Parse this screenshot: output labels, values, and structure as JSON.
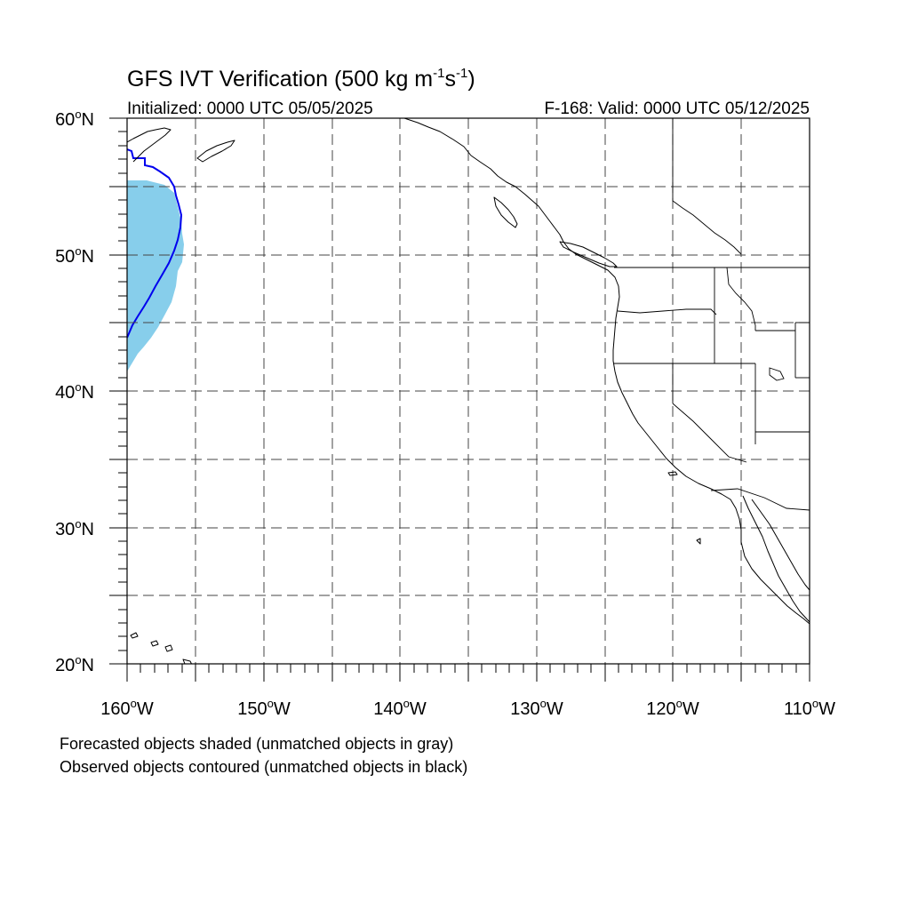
{
  "title": {
    "main": "GFS IVT Verification (500 kg m",
    "sup1": "-1",
    "mid": "s",
    "sup2": "-1",
    "end": ")"
  },
  "subtitle_left": "Initialized: 0000 UTC 05/05/2025",
  "subtitle_right": "F-168: Valid: 0000 UTC 05/12/2025",
  "lat_labels": [
    "60",
    "50",
    "40",
    "30",
    "20"
  ],
  "lon_labels": [
    "160",
    "150",
    "140",
    "130",
    "120",
    "110"
  ],
  "lat_suffix": "N",
  "lon_suffix": "W",
  "degree_symbol": "o",
  "notes": [
    "Forecasted objects shaded (unmatched objects in gray)",
    "Observed objects contoured (unmatched objects in black)"
  ],
  "map_extent": {
    "lon_min": -160,
    "lon_max": -110,
    "lat_min": 20,
    "lat_max": 60
  },
  "colors": {
    "forecast_fill": "#87ceeb",
    "observed_contour": "#0000ee",
    "coastline": "#000000",
    "grid": "#444444"
  }
}
